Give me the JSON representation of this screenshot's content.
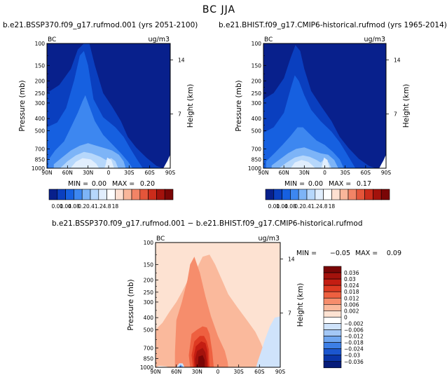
{
  "page": {
    "title": "BC JJA"
  },
  "colorbar_abs": {
    "labels": [
      "0.01",
      "0.04",
      "0.08",
      "0.2",
      "0.4",
      "1.2",
      "4.8",
      "18"
    ],
    "colors": [
      "#08208c",
      "#0a3fbf",
      "#1660e0",
      "#3d87f0",
      "#7db4f7",
      "#b6d7fb",
      "#e1eefd",
      "#ffffff",
      "#fde0d2",
      "#f9b69a",
      "#f28466",
      "#e4553a",
      "#cb2c1b",
      "#a3120c",
      "#7a0606"
    ]
  },
  "colorbar_diff": {
    "labels": [
      "0.036",
      "0.03",
      "0.024",
      "0.018",
      "0.012",
      "0.006",
      "0.002",
      "0",
      "−0.002",
      "−0.006",
      "−0.012",
      "−0.018",
      "−0.024",
      "−0.03",
      "−0.036"
    ],
    "colors": [
      "#7a0606",
      "#a3120c",
      "#c41d12",
      "#de3a22",
      "#ee6040",
      "#f68d6c",
      "#fab99c",
      "#fde2d2",
      "#ffffff",
      "#cfe3fb",
      "#a4c8f6",
      "#6fa6f0",
      "#3d7fe6",
      "#1b56cf",
      "#0a35a8",
      "#061c7a"
    ]
  },
  "chart_data": [
    {
      "type": "heatmap",
      "title": "b.e21.BSSP370.f09_g17.rufmod.001 (yrs 2051-2100)",
      "variable": "BC",
      "units": "ug/m3",
      "ylabel": "Pressure (mb)",
      "y2label": "Height (km)",
      "x_ticks": [
        "90N",
        "60N",
        "30N",
        "0",
        "30S",
        "60S",
        "90S"
      ],
      "y_ticks": [
        100,
        150,
        200,
        250,
        300,
        400,
        500,
        700,
        850,
        1000
      ],
      "y2_ticks": [
        14,
        7
      ],
      "ylim": [
        1000,
        100
      ],
      "stats": {
        "min_label": "MIN =",
        "min": "0.00",
        "max_label": "MAX =",
        "max": "0.20"
      }
    },
    {
      "type": "heatmap",
      "title": "b.e21.BHIST.f09_g17.CMIP6-historical.rufmod (yrs 1965-2014)",
      "variable": "BC",
      "units": "ug/m3",
      "ylabel": "Pressure (mb)",
      "y2label": "Height (km)",
      "x_ticks": [
        "90N",
        "60N",
        "30N",
        "0",
        "30S",
        "60S",
        "90S"
      ],
      "y_ticks": [
        100,
        150,
        200,
        250,
        300,
        400,
        500,
        700,
        850,
        1000
      ],
      "y2_ticks": [
        14,
        7
      ],
      "ylim": [
        1000,
        100
      ],
      "stats": {
        "min_label": "MIN =",
        "min": "0.00",
        "max_label": "MAX =",
        "max": "0.17"
      }
    },
    {
      "type": "heatmap",
      "title": "b.e21.BSSP370.f09_g17.rufmod.001 − b.e21.BHIST.f09_g17.CMIP6-historical.rufmod",
      "variable": "BC",
      "units": "ug/m3",
      "ylabel": "Pressure (mb)",
      "y2label": "Height (km)",
      "x_ticks": [
        "90N",
        "60N",
        "30N",
        "0",
        "30S",
        "60S",
        "90S"
      ],
      "y_ticks": [
        100,
        150,
        200,
        250,
        300,
        400,
        500,
        700,
        850,
        1000
      ],
      "y2_ticks": [
        14,
        7
      ],
      "ylim": [
        1000,
        100
      ],
      "stats": {
        "min_label": "MIN =",
        "min": "−0.05",
        "max_label": "MAX =",
        "max": "0.09"
      }
    }
  ]
}
